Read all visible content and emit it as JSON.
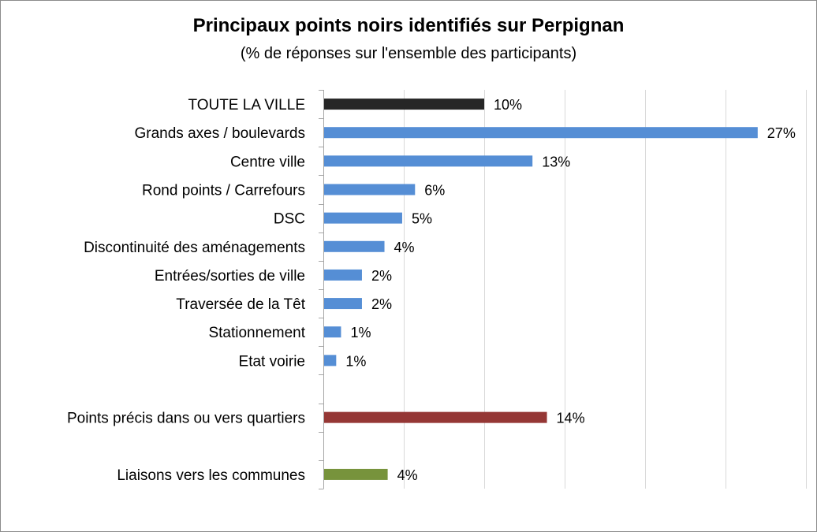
{
  "chart_data": {
    "type": "bar",
    "orientation": "horizontal",
    "title": "Principaux points noirs identifiés sur Perpignan",
    "subtitle": "(% de réponses sur l'ensemble des participants)",
    "xlim": [
      0,
      30
    ],
    "grid": true,
    "legend": "none",
    "rows": [
      {
        "label": "TOUTE LA VILLE",
        "value": 10,
        "value_label": "10%",
        "color": "#262626"
      },
      {
        "label": "Grands axes / boulevards",
        "value": 27,
        "value_label": "27%",
        "color": "#558ED5"
      },
      {
        "label": "Centre ville",
        "value": 13,
        "value_label": "13%",
        "color": "#558ED5"
      },
      {
        "label": "Rond points / Carrefours",
        "value": 5.7,
        "value_label": "6%",
        "color": "#558ED5"
      },
      {
        "label": "DSC",
        "value": 4.9,
        "value_label": "5%",
        "color": "#558ED5"
      },
      {
        "label": "Discontinuité des aménagements",
        "value": 3.8,
        "value_label": "4%",
        "color": "#558ED5"
      },
      {
        "label": "Entrées/sorties de ville",
        "value": 2.4,
        "value_label": "2%",
        "color": "#558ED5"
      },
      {
        "label": "Traversée de la Têt",
        "value": 2.4,
        "value_label": "2%",
        "color": "#558ED5"
      },
      {
        "label": "Stationnement",
        "value": 1.1,
        "value_label": "1%",
        "color": "#558ED5"
      },
      {
        "label": "Etat voirie",
        "value": 0.8,
        "value_label": "1%",
        "color": "#558ED5"
      },
      {
        "label": "",
        "value": null,
        "value_label": "",
        "color": ""
      },
      {
        "label": "Points précis dans ou vers quartiers",
        "value": 13.9,
        "value_label": "14%",
        "color": "#953735"
      },
      {
        "label": "",
        "value": null,
        "value_label": "",
        "color": ""
      },
      {
        "label": "Liaisons vers les communes",
        "value": 4.0,
        "value_label": "4%",
        "color": "#77933C"
      }
    ]
  }
}
